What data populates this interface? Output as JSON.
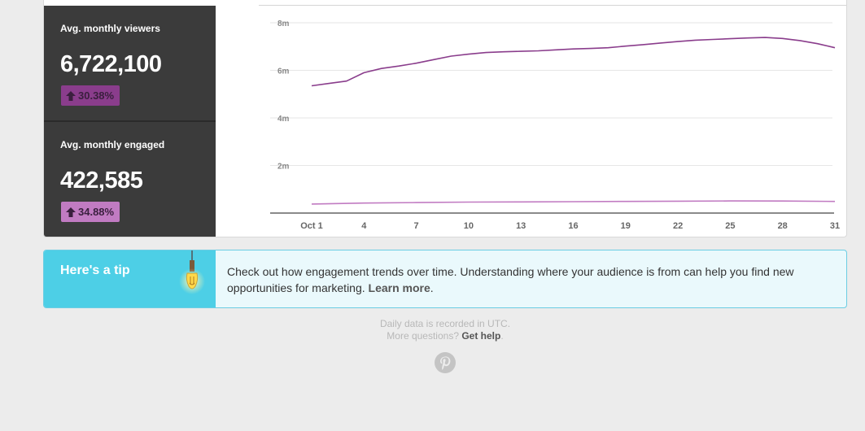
{
  "stats": [
    {
      "label": "Avg. monthly viewers",
      "value": "6,722,100",
      "change": "30.38%",
      "badge_color": "#8a3d8c"
    },
    {
      "label": "Avg. monthly engaged",
      "value": "422,585",
      "change": "34.88%",
      "badge_color": "#c17bc2"
    }
  ],
  "chart_data": {
    "type": "line",
    "x_tick_labels": [
      "Oct 1",
      "4",
      "7",
      "10",
      "13",
      "16",
      "19",
      "22",
      "25",
      "28",
      "31"
    ],
    "x_ticks": [
      1,
      4,
      7,
      10,
      13,
      16,
      19,
      22,
      25,
      28,
      31
    ],
    "y_tick_labels": [
      "8m",
      "6m",
      "4m",
      "2m"
    ],
    "y_ticks": [
      8000000,
      6000000,
      4000000,
      2000000
    ],
    "ylim": [
      0,
      8000000
    ],
    "xlim": [
      1,
      31
    ],
    "grid": true,
    "series": [
      {
        "color": "#8a3d8c",
        "x": [
          1,
          2,
          3,
          4,
          5,
          6,
          7,
          8,
          9,
          10,
          11,
          12,
          13,
          14,
          15,
          16,
          17,
          18,
          19,
          20,
          21,
          22,
          23,
          24,
          25,
          26,
          27,
          28,
          29,
          30,
          31
        ],
        "values": [
          5350000,
          5450000,
          5550000,
          5900000,
          6080000,
          6180000,
          6300000,
          6450000,
          6600000,
          6680000,
          6750000,
          6780000,
          6800000,
          6820000,
          6860000,
          6900000,
          6920000,
          6950000,
          7020000,
          7080000,
          7150000,
          7210000,
          7270000,
          7300000,
          7330000,
          7360000,
          7380000,
          7340000,
          7250000,
          7120000,
          6950000
        ]
      },
      {
        "color": "#c17bc2",
        "x": [
          1,
          4,
          7,
          10,
          13,
          16,
          19,
          22,
          25,
          28,
          31
        ],
        "values": [
          380000,
          420000,
          440000,
          460000,
          470000,
          480000,
          490000,
          500000,
          510000,
          505000,
          490000
        ]
      }
    ]
  },
  "tip": {
    "title": "Here's a tip",
    "text": "Check out how engagement trends over time. Understanding where your audience is from can help you find new opportunities for marketing.",
    "link": "Learn more",
    "trail": "."
  },
  "footer": {
    "line1": "Daily data is recorded in UTC.",
    "line2_prefix": "More questions?",
    "line2_link": "Get help",
    "line2_suffix": "."
  },
  "colors": {
    "tip_accent": "#4dcfe6",
    "stat_bg": "#3b3b3b"
  },
  "icons": {
    "badge": "arrow-up-icon",
    "tip": "lightbulb-icon",
    "footer": "pinterest-logo-icon"
  }
}
